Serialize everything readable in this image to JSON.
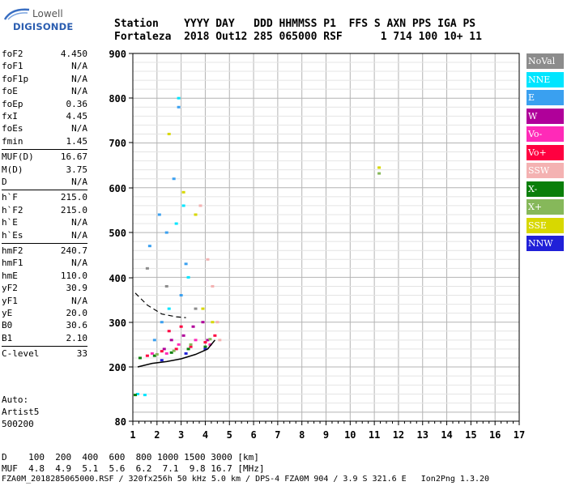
{
  "logo": {
    "line1": "Lowell",
    "line2": "DIGISONDE"
  },
  "header": {
    "line1": "Station    YYYY DAY   DDD HHMMSS P1  FFS S AXN PPS IGA PS",
    "line2": "Fortaleza  2018 Out12 285 065000 RSF      1 714 100 10+ 11"
  },
  "params": [
    {
      "name": "foF2",
      "value": "4.450"
    },
    {
      "name": "foF1",
      "value": "N/A"
    },
    {
      "name": "foF1p",
      "value": "N/A"
    },
    {
      "name": "foE",
      "value": "N/A"
    },
    {
      "name": "foEp",
      "value": "0.36"
    },
    {
      "name": "fxI",
      "value": "4.45"
    },
    {
      "name": "foEs",
      "value": "N/A"
    },
    {
      "name": "fmin",
      "value": "1.45"
    },
    {
      "name": "MUF(D)",
      "value": "16.67"
    },
    {
      "name": "M(D)",
      "value": "3.75"
    },
    {
      "name": "D",
      "value": "N/A"
    },
    {
      "name": "h`F",
      "value": "215.0"
    },
    {
      "name": "h`F2",
      "value": "215.0"
    },
    {
      "name": "h`E",
      "value": "N/A"
    },
    {
      "name": "h`Es",
      "value": "N/A"
    },
    {
      "name": "hmF2",
      "value": "240.7"
    },
    {
      "name": "hmF1",
      "value": "N/A"
    },
    {
      "name": "hmE",
      "value": "110.0"
    },
    {
      "name": "yF2",
      "value": "30.9"
    },
    {
      "name": "yF1",
      "value": "N/A"
    },
    {
      "name": "yE",
      "value": "20.0"
    },
    {
      "name": "B0",
      "value": "30.6"
    },
    {
      "name": "B1",
      "value": "2.10"
    },
    {
      "name": "C-level",
      "value": "33"
    }
  ],
  "auto": {
    "line1": "Auto:",
    "line2": "Artist5",
    "line3": "500200"
  },
  "legend": [
    {
      "label": "NoVal",
      "color": "#8c8c8c"
    },
    {
      "label": "NNE",
      "color": "#00e5ff"
    },
    {
      "label": "E",
      "color": "#3aa0f0"
    },
    {
      "label": "W",
      "color": "#b0009a"
    },
    {
      "label": "Vo-",
      "color": "#ff2ab8"
    },
    {
      "label": "Vo+",
      "color": "#ff0040"
    },
    {
      "label": "SSW",
      "color": "#f4b2b2"
    },
    {
      "label": "X-",
      "color": "#0a7f0a"
    },
    {
      "label": "X+",
      "color": "#86b85a"
    },
    {
      "label": "SSE",
      "color": "#d8d800"
    },
    {
      "label": "NNW",
      "color": "#2020d8"
    }
  ],
  "footer": {
    "line1": "D    100  200  400  600  800 1000 1500 3000 [km]",
    "line2": "MUF  4.8  4.9  5.1  5.6  6.2  7.1  9.8 16.7 [MHz]",
    "line3": "FZA0M_2018285065000.RSF / 320fx256h 50 kHz 5.0 km / DPS-4 FZA0M 904 / 3.9 S 321.6 E   Ion2Png 1.3.20"
  },
  "chart_data": {
    "type": "scatter",
    "title": "",
    "xlabel": "",
    "ylabel": "",
    "xlim": [
      1,
      17
    ],
    "ylim": [
      80,
      900
    ],
    "x_ticks": [
      "1",
      "2",
      "3",
      "4",
      "5",
      "6",
      "7",
      "8",
      "9",
      "10",
      "11",
      "12",
      "13",
      "14",
      "15",
      "16",
      "17"
    ],
    "y_ticks": [
      "900",
      "800",
      "700",
      "600",
      "500",
      "400",
      "300",
      "200",
      "80"
    ],
    "y_tick_values": [
      900,
      800,
      700,
      600,
      500,
      400,
      300,
      200,
      80
    ],
    "grid": true,
    "legend_position": "right",
    "series": [
      {
        "name": "NoVal",
        "points": [
          [
            1.6,
            420
          ],
          [
            2.4,
            380
          ],
          [
            3.6,
            330
          ]
        ]
      },
      {
        "name": "NNE",
        "points": [
          [
            1.2,
            140
          ],
          [
            1.5,
            138
          ],
          [
            2.8,
            520
          ],
          [
            3.1,
            560
          ],
          [
            2.5,
            330
          ],
          [
            3.3,
            400
          ],
          [
            2.9,
            800
          ]
        ]
      },
      {
        "name": "E",
        "points": [
          [
            1.7,
            470
          ],
          [
            2.1,
            540
          ],
          [
            2.4,
            500
          ],
          [
            2.7,
            620
          ],
          [
            2.9,
            780
          ],
          [
            3.2,
            430
          ],
          [
            3.0,
            360
          ],
          [
            2.2,
            300
          ],
          [
            1.9,
            260
          ]
        ]
      },
      {
        "name": "W",
        "points": [
          [
            2.6,
            260
          ],
          [
            3.1,
            270
          ],
          [
            3.5,
            290
          ],
          [
            3.9,
            300
          ],
          [
            4.1,
            260
          ],
          [
            2.3,
            240
          ]
        ]
      },
      {
        "name": "Vo-",
        "points": [
          [
            2.4,
            230
          ],
          [
            2.9,
            250
          ],
          [
            3.6,
            260
          ],
          [
            4.2,
            250
          ],
          [
            1.8,
            230
          ]
        ]
      },
      {
        "name": "Vo+",
        "points": [
          [
            1.6,
            225
          ],
          [
            2.2,
            235
          ],
          [
            2.8,
            240
          ],
          [
            3.4,
            245
          ],
          [
            4.0,
            255
          ],
          [
            4.4,
            270
          ],
          [
            3.0,
            290
          ],
          [
            2.5,
            280
          ]
        ]
      },
      {
        "name": "SSW",
        "points": [
          [
            4.3,
            380
          ],
          [
            4.5,
            300
          ],
          [
            3.8,
            560
          ],
          [
            4.1,
            440
          ],
          [
            4.6,
            260
          ]
        ]
      },
      {
        "name": "X-",
        "points": [
          [
            1.3,
            220
          ],
          [
            1.9,
            225
          ],
          [
            2.6,
            232
          ],
          [
            3.3,
            240
          ],
          [
            4.0,
            245
          ],
          [
            1.1,
            138
          ]
        ]
      },
      {
        "name": "X+",
        "points": [
          [
            2.0,
            228
          ],
          [
            2.7,
            236
          ],
          [
            3.4,
            250
          ],
          [
            4.2,
            262
          ],
          [
            11.2,
            632
          ]
        ]
      },
      {
        "name": "SSE",
        "points": [
          [
            3.1,
            590
          ],
          [
            3.6,
            540
          ],
          [
            2.5,
            720
          ],
          [
            3.9,
            330
          ],
          [
            4.3,
            300
          ],
          [
            11.2,
            645
          ]
        ]
      },
      {
        "name": "NNW",
        "points": [
          [
            2.2,
            215
          ],
          [
            3.2,
            230
          ],
          [
            4.0,
            240
          ]
        ]
      }
    ],
    "profile_curve": [
      [
        1.2,
        200
      ],
      [
        1.8,
        208
      ],
      [
        2.4,
        212
      ],
      [
        3.0,
        218
      ],
      [
        3.6,
        228
      ],
      [
        4.1,
        240
      ],
      [
        4.4,
        260
      ]
    ],
    "dashed_curve": [
      [
        1.1,
        365
      ],
      [
        1.6,
        338
      ],
      [
        2.2,
        318
      ],
      [
        2.8,
        312
      ],
      [
        3.2,
        310
      ]
    ]
  }
}
